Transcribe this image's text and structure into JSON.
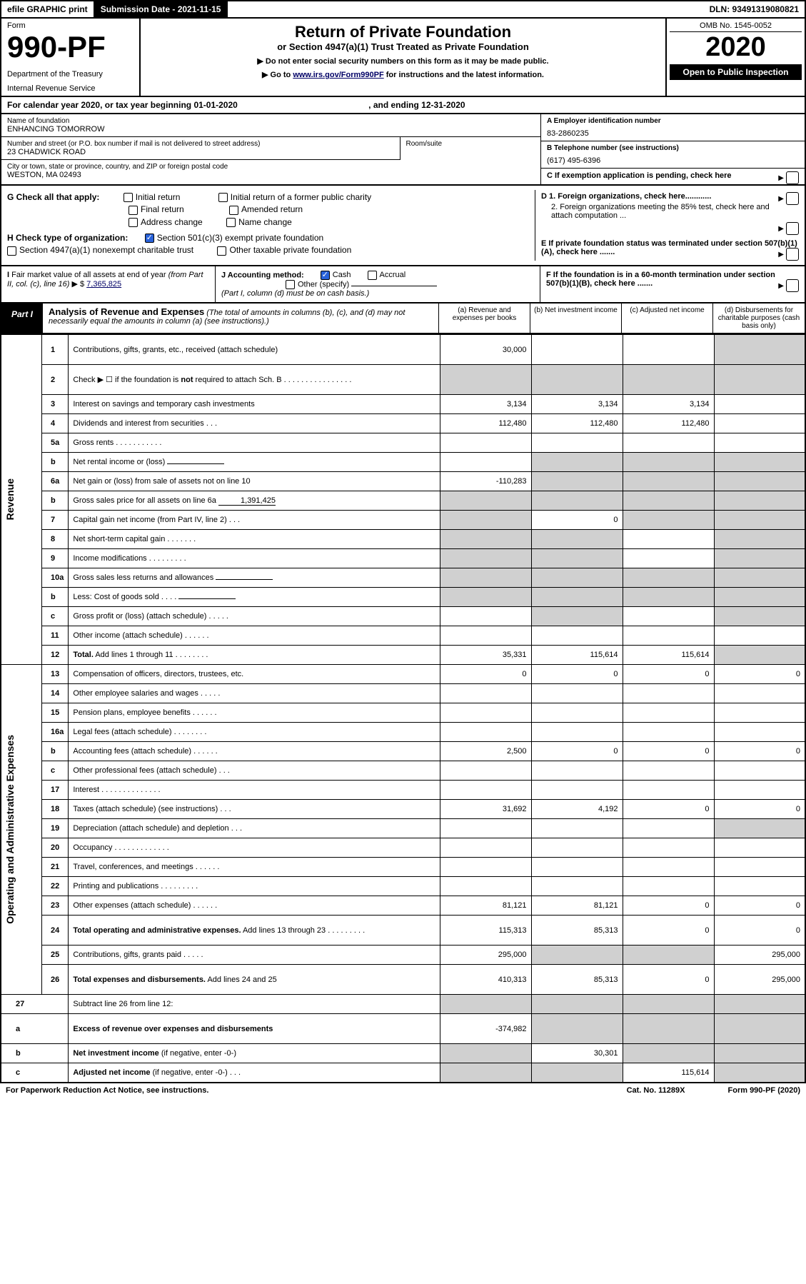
{
  "top": {
    "efile": "efile GRAPHIC print",
    "sub_label": "Submission Date - 2021-11-15",
    "dln_label": "DLN: 93491319080821"
  },
  "header": {
    "form_word": "Form",
    "form_num": "990-PF",
    "dept": "Department of the Treasury",
    "irs": "Internal Revenue Service",
    "title": "Return of Private Foundation",
    "subtitle": "or Section 4947(a)(1) Trust Treated as Private Foundation",
    "note1": "▶ Do not enter social security numbers on this form as it may be made public.",
    "note2_pre": "▶ Go to ",
    "note2_link": "www.irs.gov/Form990PF",
    "note2_post": " for instructions and the latest information.",
    "omb": "OMB No. 1545-0052",
    "year": "2020",
    "open": "Open to Public Inspection"
  },
  "cal": "For calendar year 2020, or tax year beginning 01-01-2020",
  "cal_end": ", and ending 12-31-2020",
  "info": {
    "name_lbl": "Name of foundation",
    "name_val": "ENHANCING TOMORROW",
    "addr_lbl": "Number and street (or P.O. box number if mail is not delivered to street address)",
    "addr_val": "23 CHADWICK ROAD",
    "room_lbl": "Room/suite",
    "city_lbl": "City or town, state or province, country, and ZIP or foreign postal code",
    "city_val": "WESTON, MA  02493",
    "ein_lbl": "A Employer identification number",
    "ein_val": "83-2860235",
    "tel_lbl": "B Telephone number (see instructions)",
    "tel_val": "(617) 495-6396",
    "c_lbl": "C If exemption application is pending, check here"
  },
  "checks": {
    "g_lbl": "G Check all that apply:",
    "g1": "Initial return",
    "g2": "Initial return of a former public charity",
    "g3": "Final return",
    "g4": "Amended return",
    "g5": "Address change",
    "g6": "Name change",
    "h_lbl": "H Check type of organization:",
    "h1": "Section 501(c)(3) exempt private foundation",
    "h2": "Section 4947(a)(1) nonexempt charitable trust",
    "h3": "Other taxable private foundation",
    "d1": "D 1. Foreign organizations, check here............",
    "d2": "2. Foreign organizations meeting the 85% test, check here and attach computation ...",
    "e_lbl": "E  If private foundation status was terminated under section 507(b)(1)(A), check here .......",
    "i_lbl": "I Fair market value of all assets at end of year (from Part II, col. (c), line 16) ▶ $",
    "i_val": "7,365,825",
    "j_lbl": "J Accounting method:",
    "j1": "Cash",
    "j2": "Accrual",
    "j3": "Other (specify)",
    "j_note": "(Part I, column (d) must be on cash basis.)",
    "f_lbl": "F  If the foundation is in a 60-month termination under section 507(b)(1)(B), check here ......."
  },
  "part1": {
    "tab": "Part I",
    "title": "Analysis of Revenue and Expenses",
    "title_note": " (The total of amounts in columns (b), (c), and (d) may not necessarily equal the amounts in column (a) (see instructions).)",
    "col_a": "(a)   Revenue and expenses per books",
    "col_b": "(b)   Net investment income",
    "col_c": "(c)   Adjusted net income",
    "col_d": "(d)   Disbursements for charitable purposes (cash basis only)"
  },
  "vlabels": {
    "rev": "Revenue",
    "exp": "Operating and Administrative Expenses"
  },
  "rows": [
    {
      "n": "1",
      "d": "Contributions, gifts, grants, etc., received (attach schedule)",
      "a": "30,000",
      "dsh": true,
      "tall": true
    },
    {
      "n": "2",
      "d": "Check ▶ ☐ if the foundation is <b>not</b> required to attach Sch. B   .   .   .   .   .   .   .   .   .   .   .   .   .   .   .   .",
      "tall": true,
      "allsh": true
    },
    {
      "n": "3",
      "d": "Interest on savings and temporary cash investments",
      "a": "3,134",
      "b": "3,134",
      "c": "3,134"
    },
    {
      "n": "4",
      "d": "Dividends and interest from securities    .    .    .",
      "a": "112,480",
      "b": "112,480",
      "c": "112,480"
    },
    {
      "n": "5a",
      "d": "Gross rents    .    .    .    .    .    .    .    .    .    .    .",
      "a": "",
      "b": "",
      "c": ""
    },
    {
      "n": "b",
      "d": "Net rental income or (loss)",
      "inline": "",
      "bsh": true,
      "csh": true,
      "dsh": true
    },
    {
      "n": "6a",
      "d": "Net gain or (loss) from sale of assets not on line 10",
      "a": "-110,283",
      "bsh": true,
      "csh": true,
      "dsh": true
    },
    {
      "n": "b",
      "d": "Gross sales price for all assets on line 6a",
      "inline": "1,391,425",
      "allsh": true
    },
    {
      "n": "7",
      "d": "Capital gain net income (from Part IV, line 2)    .    .    .",
      "ash": true,
      "b": "0",
      "csh": true,
      "dsh": true
    },
    {
      "n": "8",
      "d": "Net short-term capital gain    .    .    .    .    .    .    .",
      "ash": true,
      "bsh": true,
      "c": "",
      "dsh": true
    },
    {
      "n": "9",
      "d": "Income modifications   .    .    .    .    .    .    .    .    .",
      "ash": true,
      "bsh": true,
      "c": "",
      "dsh": true
    },
    {
      "n": "10a",
      "d": "Gross sales less returns and allowances",
      "inline": "",
      "allsh": true
    },
    {
      "n": "b",
      "d": "Less: Cost of goods sold     .    .    .    .",
      "inline": "",
      "allsh": true
    },
    {
      "n": "c",
      "d": "Gross profit or (loss) (attach schedule)    .    .    .    .    .",
      "a": "",
      "bsh": true,
      "c": "",
      "dsh": true
    },
    {
      "n": "11",
      "d": "Other income (attach schedule)    .    .    .    .    .    .",
      "a": "",
      "b": "",
      "c": ""
    },
    {
      "n": "12",
      "d": "<b>Total.</b> Add lines 1 through 11   .   .   .   .   .   .   .   .",
      "a": "35,331",
      "b": "115,614",
      "c": "115,614",
      "dsh": true
    }
  ],
  "exp_rows": [
    {
      "n": "13",
      "d": "Compensation of officers, directors, trustees, etc.",
      "a": "0",
      "b": "0",
      "c": "0",
      "dd": "0"
    },
    {
      "n": "14",
      "d": "Other employee salaries and wages    .    .    .    .    .",
      "a": "",
      "b": "",
      "c": "",
      "dd": ""
    },
    {
      "n": "15",
      "d": "Pension plans, employee benefits   .    .    .    .    .    .",
      "a": "",
      "b": "",
      "c": "",
      "dd": ""
    },
    {
      "n": "16a",
      "d": "Legal fees (attach schedule)  .   .   .   .   .   .   .   .",
      "a": "",
      "b": "",
      "c": "",
      "dd": ""
    },
    {
      "n": "b",
      "d": "Accounting fees (attach schedule)  .   .   .   .   .   .",
      "a": "2,500",
      "b": "0",
      "c": "0",
      "dd": "0"
    },
    {
      "n": "c",
      "d": "Other professional fees (attach schedule)    .    .    .",
      "a": "",
      "b": "",
      "c": "",
      "dd": ""
    },
    {
      "n": "17",
      "d": "Interest  .   .   .   .   .   .   .   .   .   .   .   .   .   .",
      "a": "",
      "b": "",
      "c": "",
      "dd": ""
    },
    {
      "n": "18",
      "d": "Taxes (attach schedule) (see instructions)    .    .    .",
      "a": "31,692",
      "b": "4,192",
      "c": "0",
      "dd": "0"
    },
    {
      "n": "19",
      "d": "Depreciation (attach schedule) and depletion    .    .    .",
      "a": "",
      "b": "",
      "c": "",
      "dsh": true
    },
    {
      "n": "20",
      "d": "Occupancy  .   .   .   .   .   .   .   .   .   .   .   .   .",
      "a": "",
      "b": "",
      "c": "",
      "dd": ""
    },
    {
      "n": "21",
      "d": "Travel, conferences, and meetings  .   .   .   .   .   .",
      "a": "",
      "b": "",
      "c": "",
      "dd": ""
    },
    {
      "n": "22",
      "d": "Printing and publications  .   .   .   .   .   .   .   .   .",
      "a": "",
      "b": "",
      "c": "",
      "dd": ""
    },
    {
      "n": "23",
      "d": "Other expenses (attach schedule)  .   .   .   .   .   .",
      "a": "81,121",
      "b": "81,121",
      "c": "0",
      "dd": "0"
    },
    {
      "n": "24",
      "d": "<b>Total operating and administrative expenses.</b> Add lines 13 through 23   .   .   .   .   .   .   .   .   .",
      "a": "115,313",
      "b": "85,313",
      "c": "0",
      "dd": "0",
      "tall": true
    },
    {
      "n": "25",
      "d": "Contributions, gifts, grants paid    .    .    .    .    .",
      "a": "295,000",
      "bsh": true,
      "csh": true,
      "dd": "295,000"
    },
    {
      "n": "26",
      "d": "<b>Total expenses and disbursements.</b> Add lines 24 and 25",
      "a": "410,313",
      "b": "85,313",
      "c": "0",
      "dd": "295,000",
      "tall": true
    }
  ],
  "final_rows": [
    {
      "n": "27",
      "d": "Subtract line 26 from line 12:",
      "allsh": true
    },
    {
      "n": "a",
      "d": "<b>Excess of revenue over expenses and disbursements</b>",
      "a": "-374,982",
      "bsh": true,
      "csh": true,
      "dsh": true,
      "tall": true
    },
    {
      "n": "b",
      "d": "<b>Net investment income</b> (if negative, enter -0-)",
      "ash": true,
      "b": "30,301",
      "csh": true,
      "dsh": true
    },
    {
      "n": "c",
      "d": "<b>Adjusted net income</b> (if negative, enter -0-)    .    .    .",
      "ash": true,
      "bsh": true,
      "c": "115,614",
      "dsh": true
    }
  ],
  "footer": {
    "left": "For Paperwork Reduction Act Notice, see instructions.",
    "center": "Cat. No. 11289X",
    "right": "Form 990-PF (2020)"
  }
}
